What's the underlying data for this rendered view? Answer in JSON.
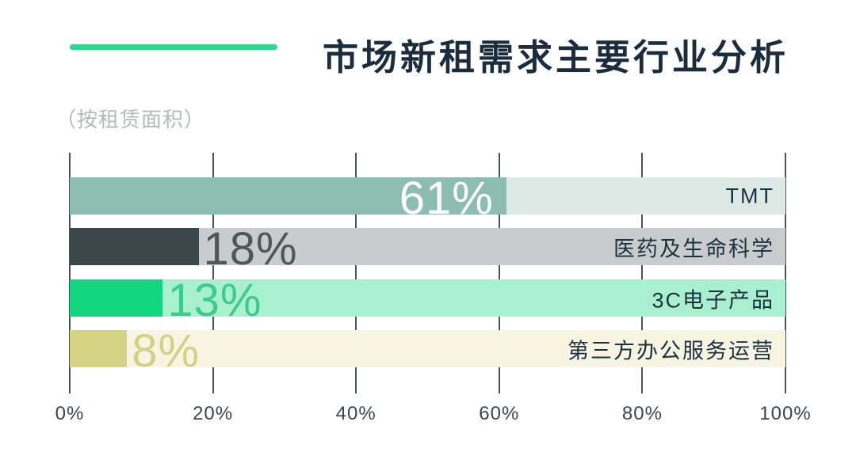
{
  "header": {
    "title": "市场新租需求主要行业分析",
    "title_color": "#1a2c3d",
    "accent_color": "#2dd88b",
    "subtitle": "（按租赁面积）",
    "subtitle_color": "#b5b9bb"
  },
  "chart_data": {
    "type": "bar",
    "orientation": "horizontal",
    "title": "市场新租需求主要行业分析",
    "subtitle": "（按租赁面积）",
    "unit": "percent of leased area",
    "xlim": [
      0,
      100
    ],
    "x_ticks": [
      {
        "value": 0,
        "label": "0%"
      },
      {
        "value": 20,
        "label": "20%"
      },
      {
        "value": 40,
        "label": "40%"
      },
      {
        "value": 60,
        "label": "60%"
      },
      {
        "value": 80,
        "label": "80%"
      },
      {
        "value": 100,
        "label": "100%"
      }
    ],
    "grid": true,
    "legend_position": "none",
    "categories": [
      "TMT",
      "医药及生命科学",
      "3C电子产品",
      "第三方办公服务运营"
    ],
    "values": [
      61,
      18,
      13,
      8
    ],
    "bars": [
      {
        "label": "TMT",
        "value": 61,
        "value_label": "61%",
        "fill_color": "#8dbdb1",
        "track_color": "#dde9e5",
        "value_color": "#fdfefe",
        "value_inside": true
      },
      {
        "label": "医药及生命科学",
        "value": 18,
        "value_label": "18%",
        "fill_color": "#3c474b",
        "track_color": "#c8cccc",
        "value_color": "#4e585c",
        "value_inside": false
      },
      {
        "label": "3C电子产品",
        "value": 13,
        "value_label": "13%",
        "fill_color": "#13d680",
        "track_color": "#a8f0d0",
        "value_color": "#3ecb8d",
        "value_inside": false
      },
      {
        "label": "第三方办公服务运营",
        "value": 8,
        "value_label": "8%",
        "fill_color": "#d5d384",
        "track_color": "#f7f5e1",
        "value_color": "#d3d186",
        "value_inside": false
      }
    ],
    "category_label_color": "#1c3140",
    "axis_tick_color": "#3d464c",
    "gridline_color": "#49545a"
  }
}
